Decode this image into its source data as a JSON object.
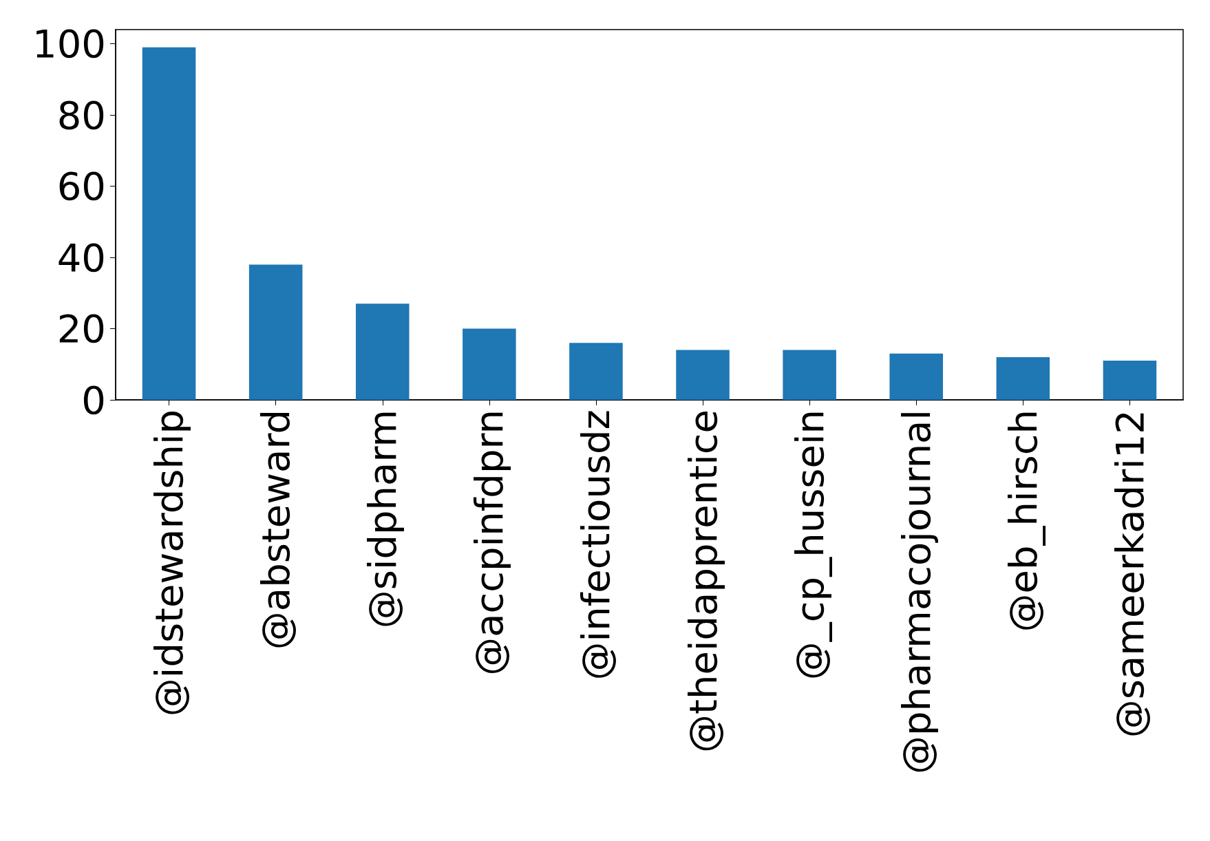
{
  "chart_data": {
    "type": "bar",
    "categories": [
      "@idstewardship",
      "@absteward",
      "@sidpharm",
      "@accpinfdprn",
      "@infectiousdz",
      "@theidapprentice",
      "@_cp_hussein",
      "@pharmacojournal",
      "@eb_hirsch",
      "@sameerkadri12"
    ],
    "values": [
      99,
      38,
      27,
      20,
      16,
      14,
      14,
      13,
      12,
      11
    ],
    "color": "#1f77b4",
    "ylim": [
      0,
      104
    ],
    "yticks": [
      0,
      20,
      40,
      60,
      80,
      100
    ],
    "grid": false
  }
}
